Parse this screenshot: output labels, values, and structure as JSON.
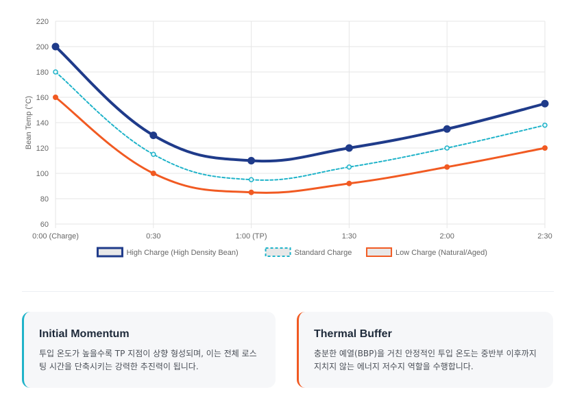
{
  "chart_data": {
    "type": "line",
    "categories": [
      "0:00 (Charge)",
      "0:30",
      "1:00 (TP)",
      "1:30",
      "2:00",
      "2:30"
    ],
    "ylabel": "Bean Temp (°C)",
    "xlabel": "",
    "ylim": [
      60,
      220
    ],
    "yticks": [
      60,
      80,
      100,
      120,
      140,
      160,
      180,
      200,
      220
    ],
    "grid": true,
    "legend_position": "bottom",
    "series": [
      {
        "name": "High Charge (High Density Bean)",
        "values": [
          200,
          130,
          110,
          120,
          135,
          155
        ],
        "color": "#1f3b8a",
        "style": "solid-bold"
      },
      {
        "name": "Standard Charge",
        "values": [
          180,
          115,
          95,
          105,
          120,
          138
        ],
        "color": "#1fb3c9",
        "style": "dashed"
      },
      {
        "name": "Low Charge (Natural/Aged)",
        "values": [
          160,
          100,
          85,
          92,
          105,
          120
        ],
        "color": "#f15a22",
        "style": "solid"
      }
    ]
  },
  "cards": [
    {
      "title": "Initial Momentum",
      "text": "투입 온도가 높을수록 TP 지점이 상향 형성되며, 이는 전체 로스팅 시간을 단축시키는 강력한 추진력이 됩니다.",
      "accent": "#1fb3c9"
    },
    {
      "title": "Thermal Buffer",
      "text": "충분한 예열(BBP)을 거친 안정적인 투입 온도는 중반부 이후까지 지치지 않는 에너지 저수지 역할을 수행합니다.",
      "accent": "#f15a22"
    }
  ]
}
